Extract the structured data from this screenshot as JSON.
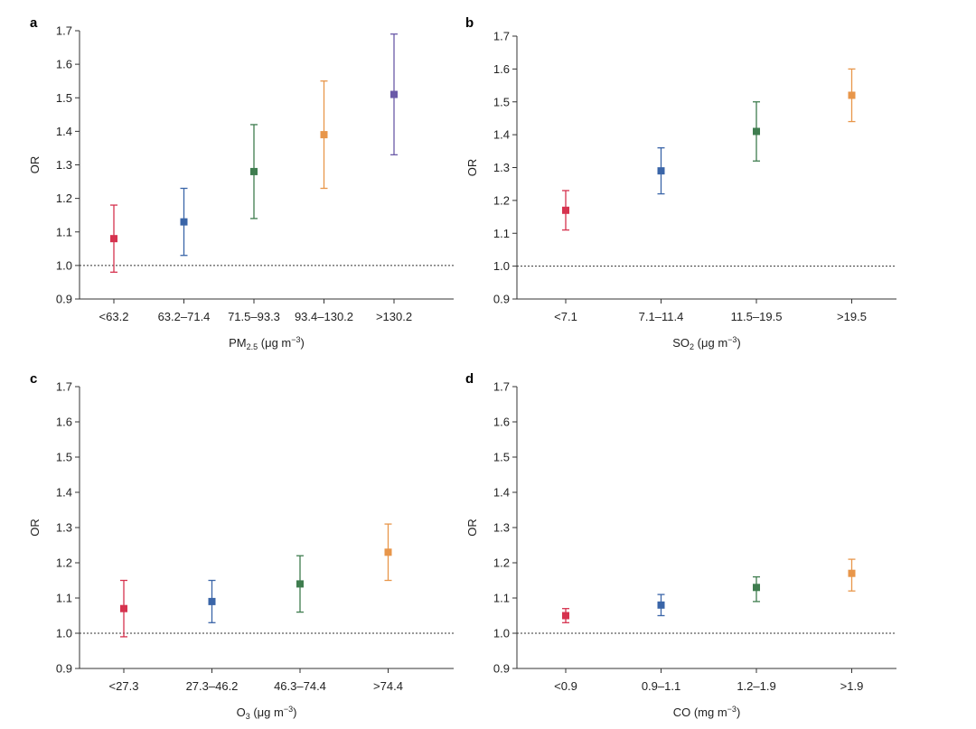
{
  "chart_data": [
    {
      "panel": "a",
      "type": "scatter",
      "subtype": "point-with-error-bars",
      "categories": [
        "<63.2",
        "63.2–71.4",
        "71.5–93.3",
        "93.4–130.2",
        ">130.2"
      ],
      "values": [
        1.08,
        1.13,
        1.28,
        1.39,
        1.51
      ],
      "lower": [
        0.98,
        1.03,
        1.14,
        1.23,
        1.33
      ],
      "upper": [
        1.18,
        1.23,
        1.42,
        1.55,
        1.69
      ],
      "colors": [
        "#d6334f",
        "#3a65a8",
        "#3f7d4f",
        "#e8964a",
        "#6b5aa8"
      ],
      "marker": "square",
      "xlabel": {
        "main": "PM",
        "sub": "2.5",
        "unit_pre": " (μg m",
        "sup": "−3",
        "unit_post": ")"
      },
      "ylabel": "OR",
      "ylim": [
        0.9,
        1.7
      ],
      "yticks": [
        "0.9",
        "1.0",
        "1.1",
        "1.2",
        "1.3",
        "1.4",
        "1.5",
        "1.6",
        "1.7"
      ],
      "reference_line": 1.0
    },
    {
      "panel": "b",
      "type": "scatter",
      "subtype": "point-with-error-bars",
      "categories": [
        "<7.1",
        "7.1–11.4",
        "11.5–19.5",
        ">19.5"
      ],
      "values": [
        1.17,
        1.29,
        1.41,
        1.52
      ],
      "lower": [
        1.11,
        1.22,
        1.32,
        1.44
      ],
      "upper": [
        1.23,
        1.36,
        1.5,
        1.6
      ],
      "colors": [
        "#d6334f",
        "#3a65a8",
        "#3f7d4f",
        "#e8964a"
      ],
      "marker": "square",
      "xlabel": {
        "main": "SO",
        "sub": "2",
        "unit_pre": " (μg m",
        "sup": "−3",
        "unit_post": ")"
      },
      "ylabel": "OR",
      "ylim": [
        0.9,
        1.7
      ],
      "yticks": [
        "0.9",
        "1.0",
        "1.1",
        "1.2",
        "1.3",
        "1.4",
        "1.5",
        "1.6",
        "1.7"
      ],
      "reference_line": 1.0
    },
    {
      "panel": "c",
      "type": "scatter",
      "subtype": "point-with-error-bars",
      "categories": [
        "<27.3",
        "27.3–46.2",
        "46.3–74.4",
        ">74.4"
      ],
      "values": [
        1.07,
        1.09,
        1.14,
        1.23
      ],
      "lower": [
        0.99,
        1.03,
        1.06,
        1.15
      ],
      "upper": [
        1.15,
        1.15,
        1.22,
        1.31
      ],
      "colors": [
        "#d6334f",
        "#3a65a8",
        "#3f7d4f",
        "#e8964a"
      ],
      "marker": "square",
      "xlabel": {
        "main": "O",
        "sub": "3",
        "unit_pre": " (μg m",
        "sup": "−3",
        "unit_post": ")"
      },
      "ylabel": "OR",
      "ylim": [
        0.9,
        1.7
      ],
      "yticks": [
        "0.9",
        "1.0",
        "1.1",
        "1.2",
        "1.3",
        "1.4",
        "1.5",
        "1.6",
        "1.7"
      ],
      "reference_line": 1.0
    },
    {
      "panel": "d",
      "type": "scatter",
      "subtype": "point-with-error-bars",
      "categories": [
        "<0.9",
        "0.9–1.1",
        "1.2–1.9",
        ">1.9"
      ],
      "values": [
        1.05,
        1.08,
        1.13,
        1.17
      ],
      "lower": [
        1.03,
        1.05,
        1.09,
        1.12
      ],
      "upper": [
        1.07,
        1.11,
        1.16,
        1.21
      ],
      "colors": [
        "#d6334f",
        "#3a65a8",
        "#3f7d4f",
        "#e8964a"
      ],
      "marker": "square",
      "xlabel": {
        "main": "CO",
        "sub": "",
        "unit_pre": " (mg m",
        "sup": "−3",
        "unit_post": ")"
      },
      "ylabel": "OR",
      "ylim": [
        0.9,
        1.7
      ],
      "yticks": [
        "0.9",
        "1.0",
        "1.1",
        "1.2",
        "1.3",
        "1.4",
        "1.5",
        "1.6",
        "1.7"
      ],
      "reference_line": 1.0
    }
  ]
}
